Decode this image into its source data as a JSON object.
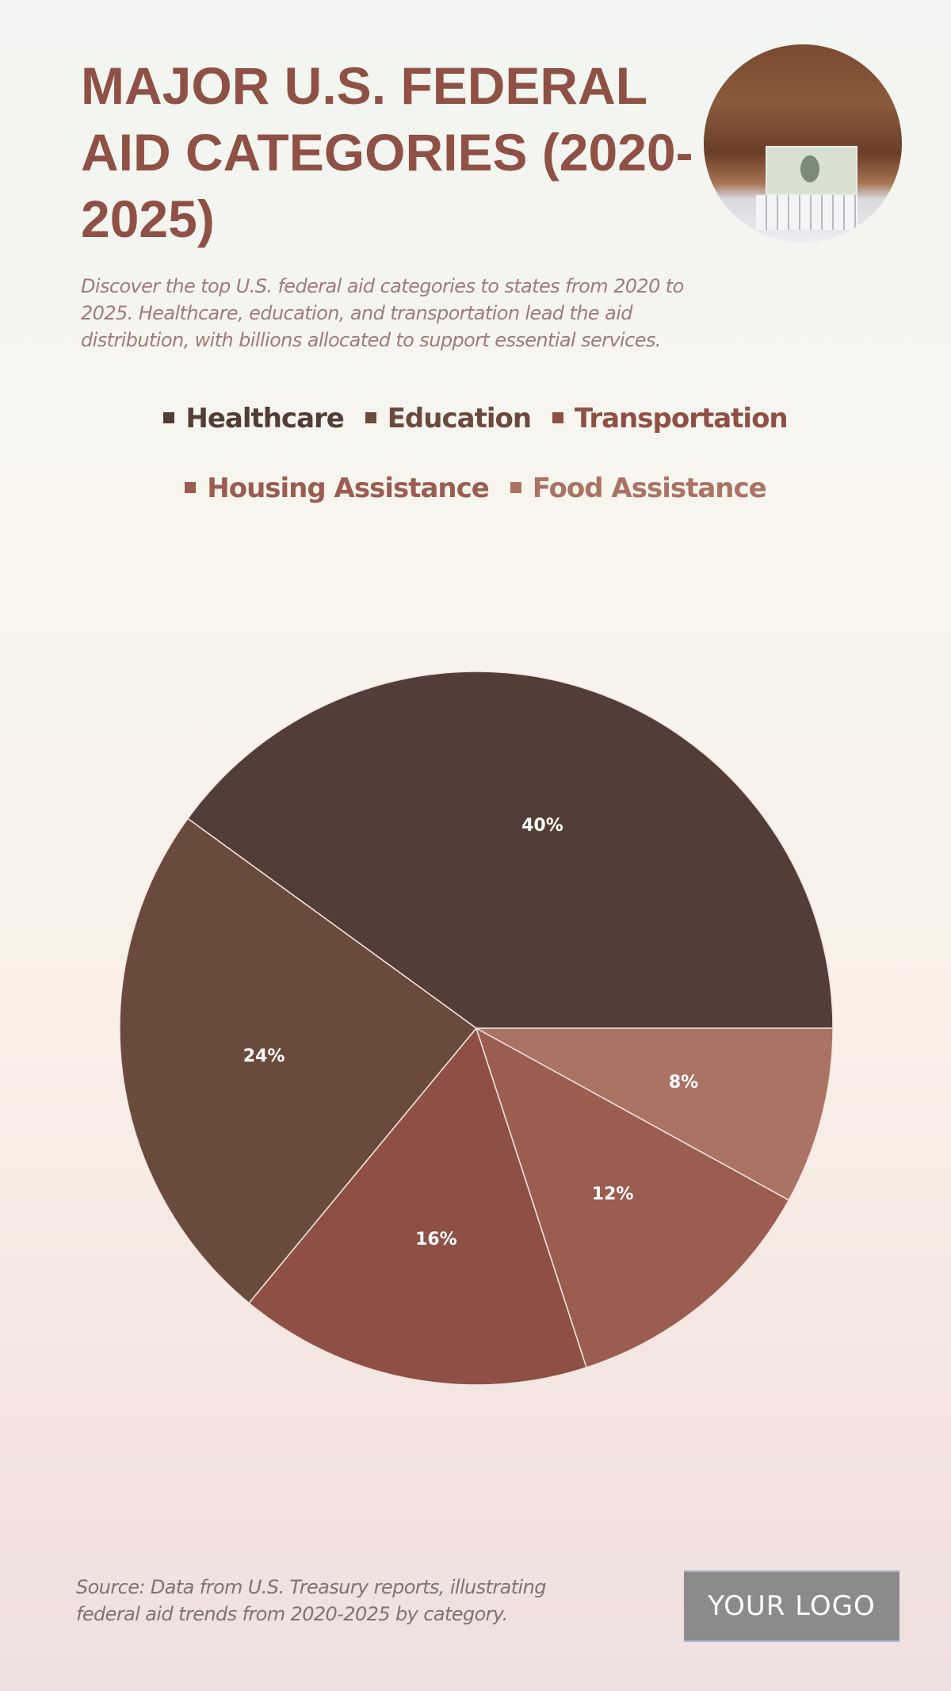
{
  "header": {
    "title": "MAJOR U.S. FEDERAL AID CATEGORIES (2020-2025)",
    "subtitle": "Discover the top U.S. federal aid categories to states from 2020 to 2025. Healthcare, education, and transportation lead the aid distribution, with billions allocated to support essential services."
  },
  "chart_data": {
    "type": "pie",
    "title": "MAJOR U.S. FEDERAL AID CATEGORIES (2020-2025)",
    "legend_placement": "top",
    "start_angle": "3 o'clock, counter-clockwise",
    "slices": [
      {
        "label": "Healthcare",
        "value": 40,
        "display": "40%",
        "color": "#523e36"
      },
      {
        "label": "Education",
        "value": 24,
        "display": "24%",
        "color": "#6b4a3e"
      },
      {
        "label": "Transportation",
        "value": 16,
        "display": "16%",
        "color": "#8e5045"
      },
      {
        "label": "Housing Assistance",
        "value": 12,
        "display": "12%",
        "color": "#9a5d50"
      },
      {
        "label": "Food Assistance",
        "value": 8,
        "display": "8%",
        "color": "#ab7363"
      }
    ]
  },
  "footer": {
    "source": "Source: Data from U.S. Treasury reports, illustrating federal aid trends from 2020-2025 by category.",
    "logo": "YOUR LOGO"
  }
}
